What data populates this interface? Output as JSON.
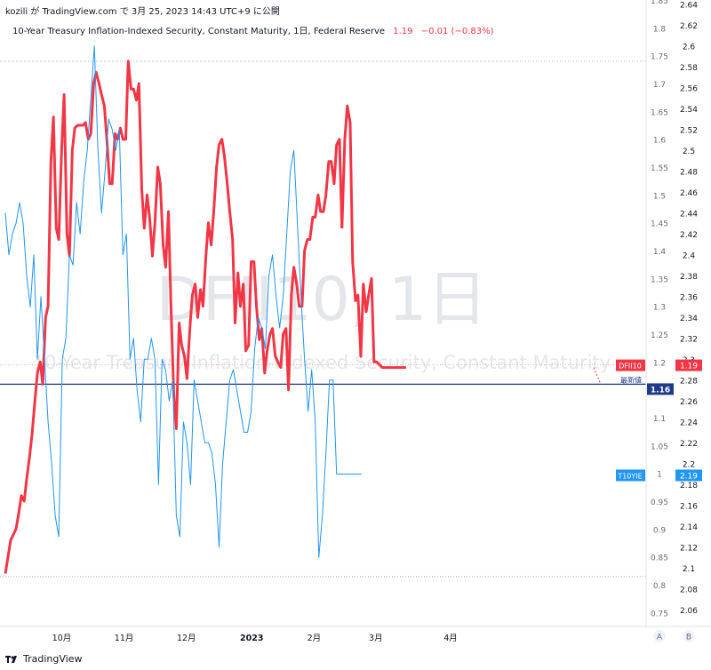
{
  "header": {
    "text": "kozili が TradingView.com で 3月 25, 2023 14:43 UTC+9 に公開"
  },
  "legend": {
    "title": "10-Year Treasury Inflation-Indexed Security, Constant Maturity, 1日, Federal Reserve",
    "value": "1.19",
    "change": "−0.01 (−0.83%)"
  },
  "footer": {
    "brand": "TradingView"
  },
  "chart_data": {
    "type": "line",
    "watermark": "DFII10, 1日",
    "watermark_sub": "10-Year Treasury Inflation-Indexed Security, Constant Maturity",
    "x_labels": [
      {
        "label": "10月",
        "x": 0.095
      },
      {
        "label": "11月",
        "x": 0.2
      },
      {
        "label": "12月",
        "x": 0.305
      },
      {
        "label": "2023",
        "x": 0.415
      },
      {
        "label": "2月",
        "x": 0.52
      },
      {
        "label": "3月",
        "x": 0.624
      },
      {
        "label": "4月",
        "x": 0.75
      }
    ],
    "left_axis": {
      "ylim": [
        0.725,
        1.85
      ],
      "ticks": [
        "0.75",
        "0.8",
        "0.85",
        "0.9",
        "0.95",
        "1",
        "1.05",
        "1.1",
        "1.15",
        "1.2",
        "1.25",
        "1.3",
        "1.35",
        "1.4",
        "1.45",
        "1.5",
        "1.55",
        "1.6",
        "1.65",
        "1.7",
        "1.75",
        "1.8",
        "1.85"
      ]
    },
    "right_axis": {
      "ylim": [
        2.044,
        2.644
      ],
      "ticks": [
        "2.06",
        "2.08",
        "2.1",
        "2.12",
        "2.14",
        "2.16",
        "2.18",
        "2.2",
        "2.22",
        "2.24",
        "2.26",
        "2.28",
        "2.3",
        "2.32",
        "2.34",
        "2.36",
        "2.38",
        "2.4",
        "2.42",
        "2.44",
        "2.46",
        "2.48",
        "2.5",
        "2.52",
        "2.54",
        "2.56",
        "2.58",
        "2.6",
        "2.62",
        "2.64"
      ]
    },
    "reference_lines": [
      {
        "name": "high-dotted-line",
        "value": 1.74,
        "color": "#b2b5be"
      },
      {
        "name": "low-dotted-line",
        "value": 0.815,
        "color": "#b2b5be"
      },
      {
        "name": "last-value-dotted-line",
        "value": 1.195,
        "color": "#f7a9a9"
      },
      {
        "name": "latest-price-line",
        "value": 1.16,
        "color": "#1e3a8a"
      }
    ],
    "labels": [
      {
        "text": "DFII10",
        "badge": "1.19",
        "value": 1.19,
        "color": "#f23645"
      },
      {
        "text": "最新値",
        "badge": "1.16",
        "value": 1.16,
        "color": "#1e3a8a"
      },
      {
        "text": "T10YIE",
        "badge": "2.19",
        "value": 2.19,
        "color": "#2196f3"
      }
    ],
    "corner_buttons": [
      "A",
      "B"
    ],
    "series": [
      {
        "name": "DFII10",
        "axis": "left",
        "color": "#f23645",
        "x": [
          0.0,
          0.015,
          0.03,
          0.038,
          0.045,
          0.053,
          0.06,
          0.068,
          0.075,
          0.083,
          0.09,
          0.098,
          0.105,
          0.113,
          0.12,
          0.128,
          0.135,
          0.143,
          0.15,
          0.158,
          0.165,
          0.173,
          0.18,
          0.188,
          0.195,
          0.203,
          0.21,
          0.218,
          0.225,
          0.233,
          0.24,
          0.248,
          0.255,
          0.263,
          0.27,
          0.278,
          0.285,
          0.293,
          0.3,
          0.308,
          0.315,
          0.323,
          0.33,
          0.338,
          0.345,
          0.353,
          0.36,
          0.368,
          0.375,
          0.383,
          0.39,
          0.398,
          0.405,
          0.413,
          0.42,
          0.428,
          0.435,
          0.443,
          0.45,
          0.458,
          0.465,
          0.473,
          0.48,
          0.488,
          0.495,
          0.503,
          0.51,
          0.518,
          0.525,
          0.533,
          0.54,
          0.548,
          0.555,
          0.563,
          0.57,
          0.578,
          0.585,
          0.593,
          0.6,
          0.608,
          0.615,
          0.623,
          0.63,
          0.638,
          0.645,
          0.653,
          0.66,
          0.668,
          0.675,
          0.683,
          0.69,
          0.698,
          0.705,
          0.713,
          0.72,
          0.728,
          0.735,
          0.743,
          0.75,
          0.758,
          0.765,
          0.773,
          0.78,
          0.788,
          0.795,
          0.803,
          0.81,
          0.818,
          0.825,
          0.833,
          0.84,
          0.848,
          0.855,
          0.863,
          0.87,
          0.878,
          0.885,
          0.893,
          0.9,
          0.908,
          0.915,
          0.923,
          0.93,
          0.938,
          0.945
        ],
        "y": [
          0.82,
          0.88,
          0.9,
          0.93,
          0.96,
          0.95,
          0.99,
          1.03,
          1.07,
          1.13,
          1.18,
          1.2,
          1.16,
          1.28,
          1.3,
          1.56,
          1.64,
          1.44,
          1.42,
          1.58,
          1.68,
          1.43,
          1.39,
          1.58,
          1.62,
          1.625,
          1.625,
          1.625,
          1.63,
          1.6,
          1.61,
          1.7,
          1.72,
          1.7,
          1.68,
          1.66,
          1.6,
          1.52,
          1.52,
          1.61,
          1.6,
          1.62,
          1.6,
          1.6,
          1.74,
          1.69,
          1.69,
          1.67,
          1.7,
          1.51,
          1.44,
          1.5,
          1.46,
          1.39,
          1.45,
          1.55,
          1.52,
          1.41,
          1.37,
          1.47,
          1.3,
          1.14,
          1.08,
          1.27,
          1.23,
          1.21,
          1.17,
          1.26,
          1.32,
          1.34,
          1.28,
          1.33,
          1.3,
          1.39,
          1.45,
          1.41,
          1.47,
          1.55,
          1.59,
          1.6,
          1.57,
          1.52,
          1.47,
          1.42,
          1.27,
          1.36,
          1.3,
          1.34,
          1.22,
          1.23,
          1.38,
          1.38,
          1.3,
          1.24,
          1.26,
          1.18,
          1.22,
          1.25,
          1.26,
          1.21,
          1.2,
          1.19,
          1.25,
          1.26,
          1.15,
          1.32,
          1.37,
          1.34,
          1.3,
          1.3,
          1.4,
          1.42,
          1.42,
          1.46,
          1.46,
          1.5,
          1.47,
          1.47,
          1.5,
          1.56,
          1.56,
          1.52,
          1.59,
          1.6,
          1.44
        ]
      },
      {
        "name": "DFII10-tail",
        "axis": "left",
        "color": "#f23645",
        "x": [
          0.945,
          0.953,
          0.96,
          0.968,
          0.975,
          0.983,
          0.99,
          0.998,
          1.005,
          1.013,
          1.02,
          1.028,
          1.035,
          1.043,
          1.05,
          1.058,
          1.065,
          1.073,
          1.08,
          1.088,
          1.095,
          1.103,
          1.11,
          1.118,
          1.125
        ],
        "y": [
          1.44,
          1.6,
          1.66,
          1.63,
          1.38,
          1.31,
          1.32,
          1.21,
          1.34,
          1.29,
          1.32,
          1.35,
          1.2,
          1.2,
          1.195,
          1.19,
          1.19,
          1.19,
          1.19,
          1.19,
          1.19,
          1.19,
          1.19,
          1.19,
          1.19
        ]
      },
      {
        "name": "T10YIE",
        "axis": "right",
        "color": "#2196f3",
        "x": [
          0.0,
          0.01,
          0.02,
          0.03,
          0.04,
          0.05,
          0.06,
          0.07,
          0.08,
          0.09,
          0.1,
          0.11,
          0.12,
          0.13,
          0.14,
          0.15,
          0.16,
          0.17,
          0.18,
          0.19,
          0.2,
          0.21,
          0.22,
          0.23,
          0.24,
          0.25,
          0.26,
          0.27,
          0.28,
          0.29,
          0.3,
          0.31,
          0.32,
          0.33,
          0.34,
          0.35,
          0.36,
          0.37,
          0.38,
          0.39,
          0.4,
          0.41,
          0.42,
          0.43,
          0.44,
          0.45,
          0.46,
          0.47,
          0.48,
          0.49,
          0.5,
          0.51,
          0.52,
          0.53,
          0.54,
          0.55,
          0.56,
          0.57,
          0.58,
          0.59,
          0.6,
          0.61,
          0.62,
          0.63,
          0.64,
          0.65,
          0.66,
          0.67,
          0.68,
          0.69,
          0.7,
          0.71,
          0.72,
          0.73,
          0.74,
          0.75,
          0.76,
          0.77,
          0.78,
          0.79,
          0.8,
          0.81,
          0.82,
          0.83,
          0.84,
          0.85,
          0.86,
          0.87,
          0.88,
          0.89,
          0.9,
          0.91,
          0.92,
          0.93,
          0.94,
          0.95,
          0.96,
          0.97,
          0.98,
          0.99,
          1.0
        ],
        "y": [
          2.44,
          2.4,
          2.42,
          2.43,
          2.45,
          2.43,
          2.38,
          2.35,
          2.4,
          2.3,
          2.36,
          2.3,
          2.24,
          2.2,
          2.15,
          2.13,
          2.3,
          2.32,
          2.4,
          2.39,
          2.45,
          2.42,
          2.47,
          2.5,
          2.55,
          2.6,
          2.5,
          2.44,
          2.48,
          2.53,
          2.52,
          2.5,
          2.52,
          2.4,
          2.42,
          2.3,
          2.32,
          2.27,
          2.24,
          2.3,
          2.3,
          2.32,
          2.3,
          2.18,
          2.3,
          2.29,
          2.26,
          2.28,
          2.15,
          2.13,
          2.24,
          2.22,
          2.18,
          2.28,
          2.26,
          2.24,
          2.22,
          2.22,
          2.21,
          2.18,
          2.12,
          2.2,
          2.24,
          2.28,
          2.29,
          2.27,
          2.25,
          2.23,
          2.23,
          2.25,
          2.31,
          2.34,
          2.33,
          2.31,
          2.38,
          2.4,
          2.36,
          2.33,
          2.36,
          2.42,
          2.48,
          2.5,
          2.43,
          2.36,
          2.3,
          2.25,
          2.29,
          2.24,
          2.11,
          2.15,
          2.21,
          2.28,
          2.28,
          2.19,
          2.19,
          2.19,
          2.19,
          2.19,
          2.19,
          2.19,
          2.19
        ]
      }
    ]
  }
}
